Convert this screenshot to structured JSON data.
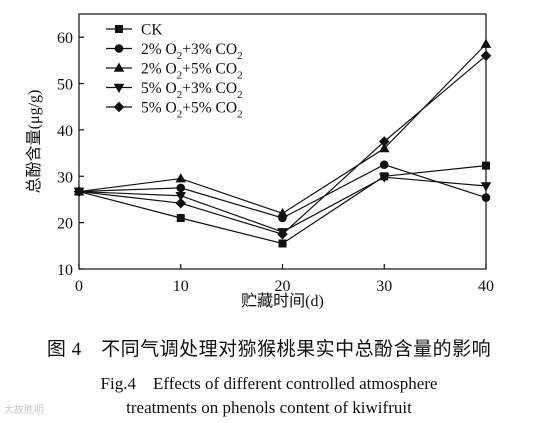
{
  "chart_data": {
    "type": "line",
    "xlabel": "贮藏时间(d)",
    "ylabel": "总酚含量(μg/g)",
    "x": [
      0,
      10,
      20,
      30,
      40
    ],
    "xlim": [
      0,
      40
    ],
    "ylim": [
      10,
      65
    ],
    "xticks": [
      0,
      10,
      20,
      30,
      40
    ],
    "yticks": [
      10,
      20,
      30,
      40,
      50,
      60
    ],
    "grid": false,
    "legend_position": "top-left",
    "series": [
      {
        "name": "CK",
        "marker": "square",
        "values": [
          26.7,
          21.0,
          15.5,
          30.0,
          32.3
        ]
      },
      {
        "name": "2% O2+3% CO2",
        "marker": "circle",
        "values": [
          26.7,
          27.5,
          21.0,
          32.5,
          25.4
        ]
      },
      {
        "name": "2% O2+5% CO2",
        "marker": "triangle-up",
        "values": [
          26.7,
          29.5,
          22.0,
          36.0,
          58.5
        ]
      },
      {
        "name": "5% O2+3% CO2",
        "marker": "triangle-down",
        "values": [
          26.7,
          25.8,
          18.0,
          29.8,
          27.9
        ]
      },
      {
        "name": "5% O2+5% CO2",
        "marker": "diamond",
        "values": [
          26.7,
          24.2,
          17.5,
          37.5,
          56.0
        ]
      }
    ],
    "color": "#111111"
  },
  "caption": {
    "chinese": "图 4　不同气调处理对猕猴桃果实中总酚含量的影响",
    "english_line1": "Fig.4　Effects of different controlled atmosphere",
    "english_line2": "treatments on phenols content of kiwifruit"
  },
  "watermark": "大故胜明"
}
